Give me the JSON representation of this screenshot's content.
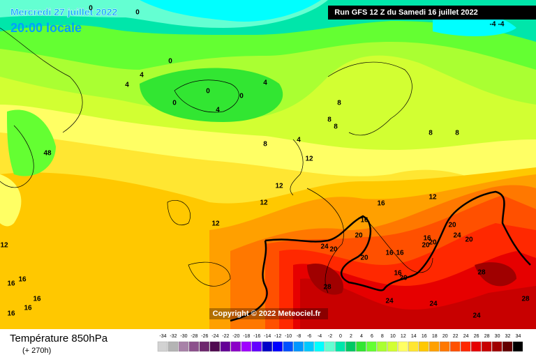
{
  "header": {
    "date": "Mercredi 27 juillet 2022",
    "time": "20:00 locale",
    "run": "Run GFS 12 Z du Samedi 16 juillet 2022"
  },
  "copyright": "Copyright © 2022 Meteociel.fr",
  "legend": {
    "title": "Température 850hPa",
    "lead": "(+ 270h)",
    "values": [
      -34,
      -32,
      -30,
      -28,
      -26,
      -24,
      -22,
      -20,
      -18,
      -16,
      -14,
      -12,
      -10,
      -8,
      -6,
      -4,
      -2,
      0,
      2,
      4,
      6,
      8,
      10,
      12,
      14,
      16,
      18,
      20,
      22,
      24,
      26,
      28,
      30,
      32,
      34
    ],
    "colors": [
      "#d2d2d2",
      "#b4b4b4",
      "#a882a8",
      "#8c508c",
      "#6e286e",
      "#500a50",
      "#640096",
      "#8c00c8",
      "#a000ff",
      "#6400ff",
      "#0000c8",
      "#0000ff",
      "#0050ff",
      "#0096ff",
      "#00c8ff",
      "#00ffff",
      "#64ffd2",
      "#00e6aa",
      "#00c864",
      "#32e632",
      "#64ff32",
      "#aaff32",
      "#d2ff32",
      "#ffff64",
      "#ffe632",
      "#ffc800",
      "#ffa000",
      "#ff7800",
      "#ff5000",
      "#ff2800",
      "#e60000",
      "#c80000",
      "#a00000",
      "#640000",
      "#000000"
    ]
  },
  "contour_labels": [
    0,
    0,
    0,
    0,
    0,
    0,
    -4,
    -4,
    4,
    4,
    4,
    4,
    4,
    8,
    8,
    8,
    8,
    8,
    8,
    48,
    12,
    12,
    12,
    12,
    12,
    12,
    16,
    16,
    16,
    16,
    16,
    16,
    16,
    16,
    16,
    16,
    16,
    20,
    20,
    20,
    20,
    20,
    20,
    20,
    20,
    24,
    24,
    24,
    24,
    24,
    28,
    28,
    28
  ]
}
